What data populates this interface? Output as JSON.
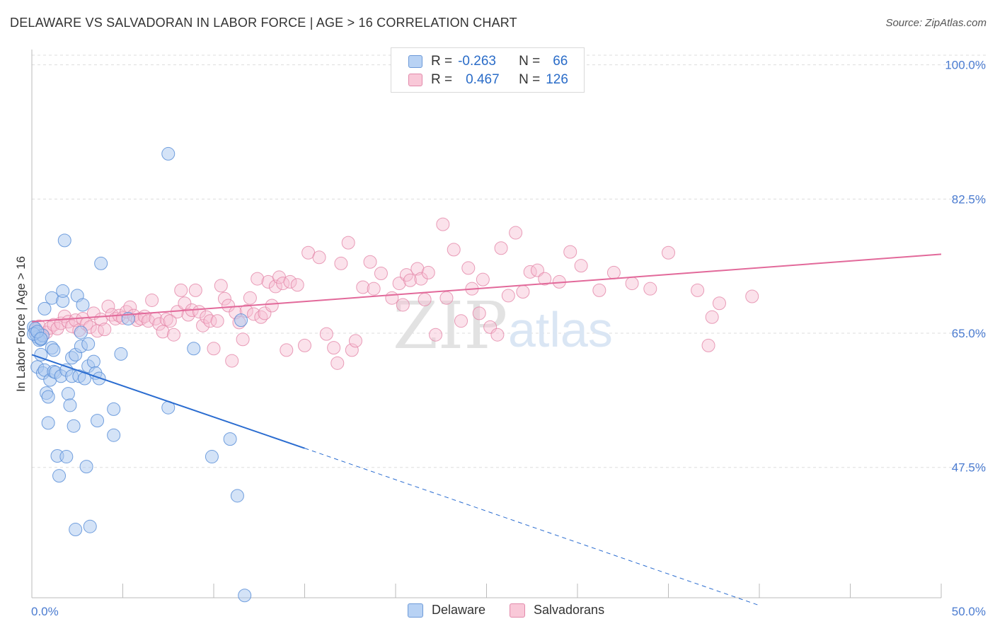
{
  "title": "DELAWARE VS SALVADORAN IN LABOR FORCE | AGE > 16 CORRELATION CHART",
  "source": "Source: ZipAtlas.com",
  "watermark": {
    "part1": "ZIP",
    "part2": "atlas"
  },
  "legend_top": {
    "rows": [
      {
        "r_label": "R =",
        "r_value": "-0.263",
        "n_label": "N =",
        "n_value": "66"
      },
      {
        "r_label": "R =",
        "r_value": "0.467",
        "n_label": "N =",
        "n_value": "126"
      }
    ]
  },
  "legend_bottom": {
    "items": [
      "Delaware",
      "Salvadorans"
    ]
  },
  "colors": {
    "delaware_fill": "#a9c8f0",
    "delaware_stroke": "#5b8fd8",
    "delaware_line": "#2a6cd0",
    "salvadoran_fill": "#f6bfd2",
    "salvadoran_stroke": "#e486a8",
    "salvadoran_line": "#e2699a",
    "axis_text": "#4a7bd0",
    "grid": "#dddddd"
  },
  "chart_data": {
    "type": "scatter",
    "title": "DELAWARE VS SALVADORAN IN LABOR FORCE | AGE > 16 CORRELATION CHART",
    "xlabel": "",
    "ylabel": "In Labor Force | Age > 16",
    "xlim": [
      0,
      50
    ],
    "ylim": [
      30.5,
      102
    ],
    "x_tick_labels": [
      "0.0%",
      "50.0%"
    ],
    "y_ticks": [
      47.5,
      65.0,
      82.5,
      100.0
    ],
    "y_tick_labels": [
      "47.5%",
      "65.0%",
      "82.5%",
      "100.0%"
    ],
    "grid": true,
    "series": [
      {
        "name": "Delaware",
        "points": [
          [
            0.1,
            65.8
          ],
          [
            0.2,
            65.0
          ],
          [
            0.3,
            64.5
          ],
          [
            0.3,
            60.6
          ],
          [
            0.5,
            64.2
          ],
          [
            0.5,
            62.2
          ],
          [
            0.6,
            59.8
          ],
          [
            0.7,
            68.2
          ],
          [
            0.7,
            60.2
          ],
          [
            0.8,
            57.2
          ],
          [
            0.9,
            56.7
          ],
          [
            0.9,
            53.3
          ],
          [
            1.0,
            58.9
          ],
          [
            1.1,
            69.6
          ],
          [
            1.1,
            63.1
          ],
          [
            1.2,
            60.0
          ],
          [
            1.2,
            62.8
          ],
          [
            1.3,
            59.9
          ],
          [
            1.4,
            49.0
          ],
          [
            1.5,
            46.4
          ],
          [
            1.6,
            59.4
          ],
          [
            1.7,
            69.2
          ],
          [
            1.7,
            70.5
          ],
          [
            1.8,
            77.1
          ],
          [
            1.9,
            60.2
          ],
          [
            1.9,
            48.9
          ],
          [
            2.0,
            57.1
          ],
          [
            2.1,
            55.6
          ],
          [
            2.2,
            59.4
          ],
          [
            2.2,
            61.8
          ],
          [
            2.3,
            52.9
          ],
          [
            2.4,
            39.4
          ],
          [
            2.4,
            62.2
          ],
          [
            2.5,
            69.9
          ],
          [
            2.6,
            59.4
          ],
          [
            2.7,
            63.3
          ],
          [
            2.7,
            65.1
          ],
          [
            2.8,
            68.7
          ],
          [
            2.9,
            59.1
          ],
          [
            3.0,
            47.6
          ],
          [
            3.1,
            60.7
          ],
          [
            3.1,
            63.6
          ],
          [
            3.2,
            39.8
          ],
          [
            3.4,
            61.3
          ],
          [
            3.5,
            59.8
          ],
          [
            3.6,
            53.6
          ],
          [
            3.7,
            59.1
          ],
          [
            3.8,
            74.1
          ],
          [
            4.5,
            55.1
          ],
          [
            4.5,
            51.7
          ],
          [
            4.9,
            62.3
          ],
          [
            5.3,
            66.9
          ],
          [
            7.5,
            88.4
          ],
          [
            7.5,
            55.3
          ],
          [
            8.9,
            63.0
          ],
          [
            9.9,
            48.9
          ],
          [
            10.9,
            51.2
          ],
          [
            11.3,
            43.8
          ],
          [
            11.5,
            66.7
          ],
          [
            11.7,
            30.8
          ],
          [
            0.2,
            65.6
          ],
          [
            0.4,
            64.1
          ],
          [
            0.6,
            64.7
          ],
          [
            0.1,
            64.9
          ],
          [
            0.3,
            65.2
          ],
          [
            0.5,
            64.3
          ]
        ]
      },
      {
        "name": "Salvadorans",
        "points": [
          [
            0.2,
            65.4
          ],
          [
            0.4,
            65.9
          ],
          [
            0.6,
            64.8
          ],
          [
            0.8,
            65.1
          ],
          [
            1.0,
            65.7
          ],
          [
            1.2,
            66.1
          ],
          [
            1.4,
            65.6
          ],
          [
            1.6,
            66.3
          ],
          [
            1.8,
            67.2
          ],
          [
            2.0,
            66.5
          ],
          [
            2.2,
            65.9
          ],
          [
            2.4,
            66.7
          ],
          [
            2.6,
            65.4
          ],
          [
            2.8,
            66.9
          ],
          [
            3.0,
            66.2
          ],
          [
            3.2,
            65.8
          ],
          [
            3.4,
            67.6
          ],
          [
            3.6,
            65.3
          ],
          [
            3.8,
            66.8
          ],
          [
            4.0,
            65.5
          ],
          [
            4.2,
            68.5
          ],
          [
            4.4,
            67.4
          ],
          [
            4.6,
            66.9
          ],
          [
            4.8,
            67.3
          ],
          [
            5.0,
            67.0
          ],
          [
            5.2,
            67.8
          ],
          [
            5.4,
            68.4
          ],
          [
            5.6,
            67.3
          ],
          [
            5.8,
            66.7
          ],
          [
            6.0,
            66.9
          ],
          [
            6.2,
            67.2
          ],
          [
            6.4,
            66.6
          ],
          [
            6.6,
            69.3
          ],
          [
            6.8,
            66.9
          ],
          [
            7.0,
            66.2
          ],
          [
            7.2,
            65.2
          ],
          [
            7.4,
            66.8
          ],
          [
            7.6,
            66.6
          ],
          [
            7.8,
            64.8
          ],
          [
            8.0,
            67.8
          ],
          [
            8.2,
            70.6
          ],
          [
            8.4,
            68.9
          ],
          [
            8.6,
            67.4
          ],
          [
            8.8,
            68.0
          ],
          [
            9.0,
            70.6
          ],
          [
            9.2,
            67.8
          ],
          [
            9.4,
            66.0
          ],
          [
            9.6,
            67.1
          ],
          [
            9.8,
            66.6
          ],
          [
            10.0,
            63.0
          ],
          [
            10.2,
            66.6
          ],
          [
            10.4,
            71.2
          ],
          [
            10.6,
            69.5
          ],
          [
            10.8,
            68.6
          ],
          [
            11.0,
            61.4
          ],
          [
            11.2,
            67.7
          ],
          [
            11.4,
            66.4
          ],
          [
            11.6,
            64.2
          ],
          [
            11.8,
            67.9
          ],
          [
            12.0,
            69.6
          ],
          [
            12.2,
            67.5
          ],
          [
            12.4,
            72.1
          ],
          [
            12.6,
            67.1
          ],
          [
            12.8,
            67.6
          ],
          [
            13.0,
            71.7
          ],
          [
            13.2,
            68.6
          ],
          [
            13.4,
            71.1
          ],
          [
            13.6,
            72.3
          ],
          [
            13.8,
            71.5
          ],
          [
            14.0,
            62.8
          ],
          [
            14.2,
            71.7
          ],
          [
            14.6,
            71.3
          ],
          [
            15.0,
            63.4
          ],
          [
            15.2,
            75.5
          ],
          [
            15.8,
            74.9
          ],
          [
            16.2,
            64.9
          ],
          [
            16.6,
            63.1
          ],
          [
            16.8,
            61.1
          ],
          [
            17.0,
            74.1
          ],
          [
            17.4,
            76.8
          ],
          [
            17.6,
            62.8
          ],
          [
            17.8,
            64.0
          ],
          [
            18.2,
            71.0
          ],
          [
            18.6,
            74.3
          ],
          [
            18.8,
            70.8
          ],
          [
            19.2,
            72.8
          ],
          [
            19.8,
            69.6
          ],
          [
            20.2,
            71.5
          ],
          [
            20.4,
            68.7
          ],
          [
            20.6,
            72.6
          ],
          [
            20.8,
            71.9
          ],
          [
            21.2,
            73.4
          ],
          [
            21.4,
            72.1
          ],
          [
            21.6,
            69.4
          ],
          [
            21.8,
            72.9
          ],
          [
            22.2,
            64.8
          ],
          [
            22.6,
            79.2
          ],
          [
            22.8,
            69.6
          ],
          [
            23.2,
            75.9
          ],
          [
            23.6,
            66.6
          ],
          [
            24.0,
            73.5
          ],
          [
            24.2,
            70.8
          ],
          [
            24.6,
            67.6
          ],
          [
            24.8,
            72.0
          ],
          [
            25.2,
            65.8
          ],
          [
            25.6,
            64.8
          ],
          [
            25.8,
            76.1
          ],
          [
            26.2,
            69.9
          ],
          [
            26.6,
            78.1
          ],
          [
            27.0,
            70.4
          ],
          [
            27.4,
            73.0
          ],
          [
            27.8,
            73.2
          ],
          [
            28.2,
            72.1
          ],
          [
            29.0,
            71.7
          ],
          [
            29.6,
            75.6
          ],
          [
            30.2,
            73.8
          ],
          [
            31.2,
            70.6
          ],
          [
            32.0,
            72.9
          ],
          [
            33.0,
            71.5
          ],
          [
            34.0,
            70.8
          ],
          [
            35.0,
            75.5
          ],
          [
            36.6,
            70.6
          ],
          [
            37.4,
            67.1
          ],
          [
            37.8,
            68.9
          ],
          [
            39.6,
            69.8
          ],
          [
            37.2,
            63.4
          ]
        ]
      }
    ],
    "trendlines": [
      {
        "series": "Delaware",
        "solid": [
          [
            0,
            62.2
          ],
          [
            15,
            50.0
          ]
        ],
        "dashed": [
          [
            15,
            50.0
          ],
          [
            40,
            29.5
          ]
        ]
      },
      {
        "series": "Salvadorans",
        "solid": [
          [
            0,
            66.5
          ],
          [
            50,
            75.3
          ]
        ]
      }
    ]
  }
}
